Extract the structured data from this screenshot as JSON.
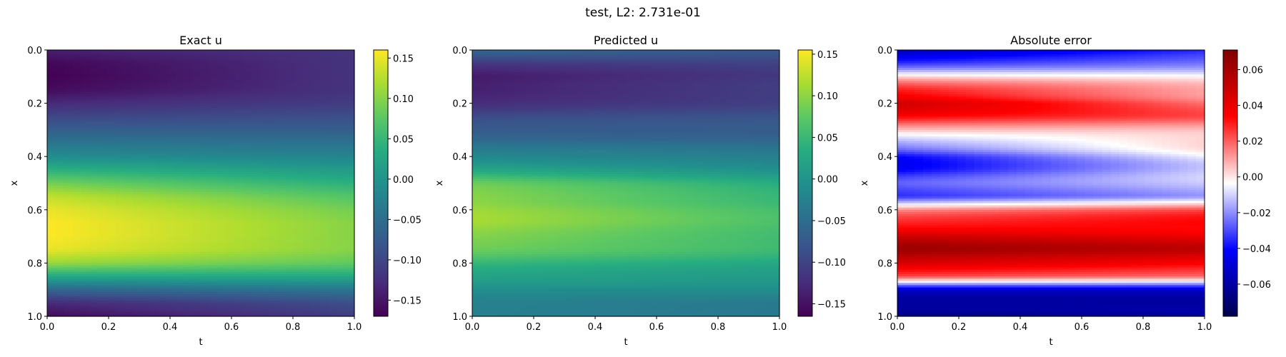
{
  "figure": {
    "suptitle": "test, L2: 2.731e-01"
  },
  "chart_data": [
    {
      "type": "heatmap",
      "title": "Exact u",
      "xlabel": "t",
      "ylabel": "x",
      "xlim": [
        0.0,
        1.0
      ],
      "ylim": [
        1.0,
        0.0
      ],
      "xticks": [
        "0.0",
        "0.2",
        "0.4",
        "0.6",
        "0.8",
        "1.0"
      ],
      "yticks": [
        "0.0",
        "0.2",
        "0.4",
        "0.6",
        "0.8",
        "1.0"
      ],
      "colormap": "viridis",
      "color_range": [
        -0.17,
        0.16
      ],
      "colorbar_ticks": [
        "0.15",
        "0.10",
        "0.05",
        "0.00",
        "−0.05",
        "−0.10",
        "−0.15"
      ],
      "x_values": [
        0.0,
        0.2,
        0.4,
        0.6,
        0.8,
        1.0
      ],
      "profile_x": [
        0.0,
        0.05,
        0.1,
        0.15,
        0.2,
        0.3,
        0.4,
        0.45,
        0.5,
        0.55,
        0.6,
        0.65,
        0.7,
        0.75,
        0.8,
        0.85,
        0.9,
        0.95,
        1.0
      ],
      "u_profile_t0": [
        -0.14,
        -0.165,
        -0.17,
        -0.16,
        -0.13,
        -0.07,
        -0.01,
        0.04,
        0.09,
        0.13,
        0.15,
        0.16,
        0.16,
        0.15,
        0.11,
        0.03,
        -0.06,
        -0.13,
        -0.16
      ],
      "u_profile_t1": [
        -0.12,
        -0.12,
        -0.12,
        -0.12,
        -0.11,
        -0.07,
        -0.02,
        0.01,
        0.04,
        0.07,
        0.09,
        0.1,
        0.1,
        0.1,
        0.08,
        0.03,
        -0.04,
        -0.09,
        -0.11
      ]
    },
    {
      "type": "heatmap",
      "title": "Predicted u",
      "xlabel": "t",
      "ylabel": "x",
      "xlim": [
        0.0,
        1.0
      ],
      "ylim": [
        1.0,
        0.0
      ],
      "xticks": [
        "0.0",
        "0.2",
        "0.4",
        "0.6",
        "0.8",
        "1.0"
      ],
      "yticks": [
        "0.0",
        "0.2",
        "0.4",
        "0.6",
        "0.8",
        "1.0"
      ],
      "colormap": "viridis",
      "color_range": [
        -0.165,
        0.155
      ],
      "colorbar_ticks": [
        "0.15",
        "0.10",
        "0.05",
        "0.00",
        "−0.05",
        "−0.10",
        "−0.15"
      ],
      "profile_x": [
        0.0,
        0.05,
        0.1,
        0.15,
        0.2,
        0.3,
        0.4,
        0.45,
        0.5,
        0.55,
        0.6,
        0.65,
        0.7,
        0.75,
        0.8,
        0.85,
        0.9,
        0.95,
        1.0
      ],
      "u_profile_t0": [
        -0.06,
        -0.11,
        -0.14,
        -0.14,
        -0.12,
        -0.07,
        -0.02,
        0.03,
        0.08,
        0.1,
        0.11,
        0.11,
        0.1,
        0.08,
        0.05,
        0.02,
        -0.01,
        -0.02,
        -0.03
      ],
      "u_profile_t1": [
        -0.08,
        -0.1,
        -0.11,
        -0.11,
        -0.1,
        -0.07,
        -0.03,
        0.0,
        0.03,
        0.05,
        0.06,
        0.06,
        0.06,
        0.05,
        0.03,
        0.01,
        -0.01,
        -0.03,
        -0.04
      ]
    },
    {
      "type": "heatmap",
      "title": "Absolute error",
      "xlabel": "t",
      "ylabel": "x",
      "xlim": [
        0.0,
        1.0
      ],
      "ylim": [
        1.0,
        0.0
      ],
      "xticks": [
        "0.0",
        "0.2",
        "0.4",
        "0.6",
        "0.8",
        "1.0"
      ],
      "yticks": [
        "0.0",
        "0.2",
        "0.4",
        "0.6",
        "0.8",
        "1.0"
      ],
      "colormap": "seismic",
      "color_range": [
        -0.078,
        0.071
      ],
      "colorbar_ticks": [
        "0.06",
        "0.04",
        "0.02",
        "0.00",
        "−0.02",
        "−0.04",
        "−0.06"
      ],
      "profile_x": [
        0.0,
        0.05,
        0.1,
        0.15,
        0.2,
        0.25,
        0.3,
        0.35,
        0.4,
        0.45,
        0.5,
        0.55,
        0.6,
        0.65,
        0.7,
        0.75,
        0.8,
        0.85,
        0.9,
        0.95,
        1.0
      ],
      "err_profile_t0": [
        -0.06,
        -0.03,
        0.0,
        0.03,
        0.05,
        0.03,
        0.01,
        -0.02,
        -0.04,
        -0.04,
        -0.03,
        -0.03,
        0.01,
        0.03,
        0.05,
        0.06,
        0.05,
        0.02,
        -0.05,
        -0.06,
        -0.07
      ],
      "err_profile_t1": [
        -0.04,
        -0.02,
        -0.005,
        0.01,
        0.02,
        0.02,
        0.01,
        0.0,
        -0.005,
        -0.01,
        -0.015,
        -0.015,
        0.02,
        0.035,
        0.04,
        0.05,
        0.04,
        0.015,
        -0.05,
        -0.06,
        -0.065
      ]
    }
  ]
}
